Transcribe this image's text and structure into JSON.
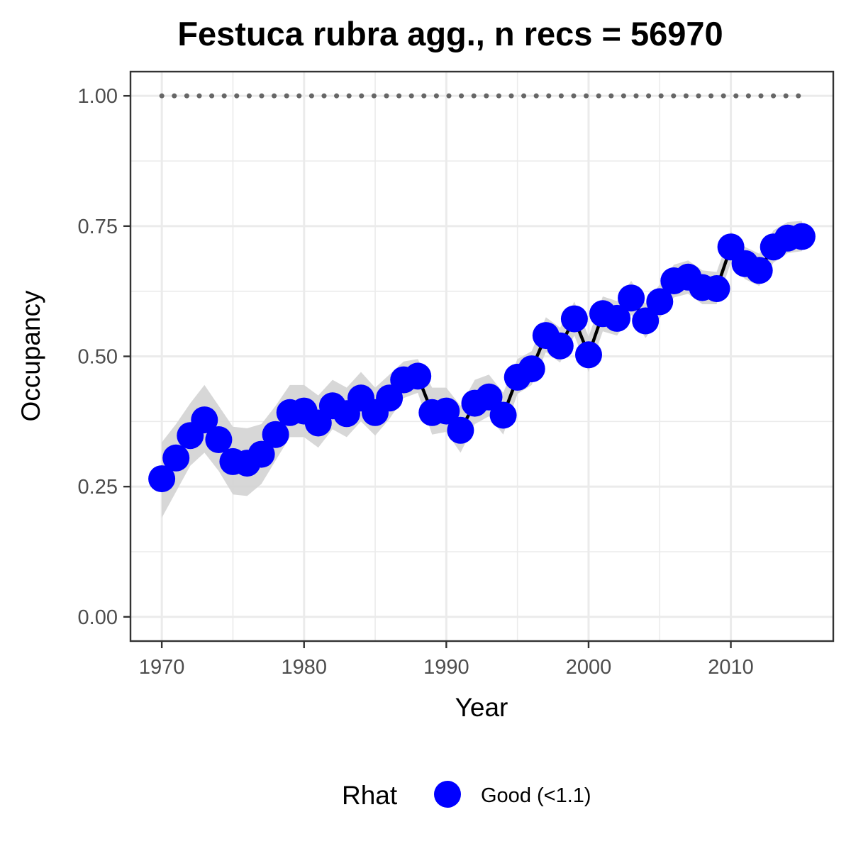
{
  "chart_data": {
    "type": "line",
    "title": "Festuca rubra agg., n recs = 56970",
    "xlabel": "Year",
    "ylabel": "Occupancy",
    "xlim": [
      1967.8,
      2017.2
    ],
    "ylim": [
      -0.0465,
      1.0465
    ],
    "x_ticks": [
      1970,
      1980,
      1990,
      2000,
      2010
    ],
    "x_tick_labels": [
      "1970",
      "1980",
      "1990",
      "2000",
      "2010"
    ],
    "y_ticks": [
      0,
      0.25,
      0.5,
      0.75,
      1
    ],
    "y_tick_labels": [
      "0.00",
      "0.25",
      "0.50",
      "0.75",
      "1.00"
    ],
    "grid": true,
    "legend": {
      "position": "bottom",
      "title": "Rhat",
      "entries": [
        {
          "label": "Good (<1.1)",
          "color": "#0000ff"
        }
      ]
    },
    "colors": {
      "points": "#0000ff",
      "line": "#000000",
      "ribbon": "#d3d3d3",
      "reference": "#666666"
    },
    "reference_line": {
      "y": 1.0,
      "style": "dotted",
      "x_from": 1970,
      "x_to": 2015
    },
    "series": [
      {
        "x": [
          1970,
          1971,
          1972,
          1973,
          1974,
          1975,
          1976,
          1977,
          1978,
          1979,
          1980,
          1981,
          1982,
          1983,
          1984,
          1985,
          1986,
          1987,
          1988,
          1989,
          1990,
          1991,
          1992,
          1993,
          1994,
          1995,
          1996,
          1997,
          1998,
          1999,
          2000,
          2001,
          2002,
          2003,
          2004,
          2005,
          2006,
          2007,
          2008,
          2009,
          2010,
          2011,
          2012,
          2013,
          2014,
          2015
        ],
        "values": [
          0.265,
          0.305,
          0.348,
          0.378,
          0.34,
          0.298,
          0.295,
          0.312,
          0.35,
          0.392,
          0.395,
          0.372,
          0.405,
          0.39,
          0.42,
          0.392,
          0.42,
          0.455,
          0.462,
          0.392,
          0.395,
          0.358,
          0.41,
          0.422,
          0.387,
          0.46,
          0.476,
          0.54,
          0.52,
          0.572,
          0.503,
          0.582,
          0.573,
          0.612,
          0.568,
          0.605,
          0.645,
          0.652,
          0.632,
          0.63,
          0.71,
          0.678,
          0.665,
          0.71,
          0.727,
          0.73
        ],
        "lower": [
          0.19,
          0.24,
          0.29,
          0.315,
          0.28,
          0.235,
          0.232,
          0.255,
          0.3,
          0.345,
          0.345,
          0.325,
          0.36,
          0.345,
          0.375,
          0.348,
          0.38,
          0.42,
          0.43,
          0.35,
          0.355,
          0.315,
          0.37,
          0.385,
          0.35,
          0.428,
          0.445,
          0.508,
          0.488,
          0.54,
          0.47,
          0.548,
          0.54,
          0.58,
          0.535,
          0.573,
          0.613,
          0.62,
          0.6,
          0.6,
          0.68,
          0.648,
          0.635,
          0.68,
          0.698,
          0.702
        ],
        "upper": [
          0.335,
          0.37,
          0.41,
          0.445,
          0.405,
          0.365,
          0.362,
          0.37,
          0.405,
          0.445,
          0.445,
          0.425,
          0.455,
          0.44,
          0.47,
          0.44,
          0.465,
          0.49,
          0.495,
          0.44,
          0.44,
          0.405,
          0.455,
          0.465,
          0.43,
          0.495,
          0.51,
          0.575,
          0.555,
          0.605,
          0.538,
          0.615,
          0.606,
          0.645,
          0.602,
          0.638,
          0.676,
          0.684,
          0.665,
          0.662,
          0.74,
          0.71,
          0.697,
          0.742,
          0.758,
          0.76
        ]
      }
    ]
  }
}
